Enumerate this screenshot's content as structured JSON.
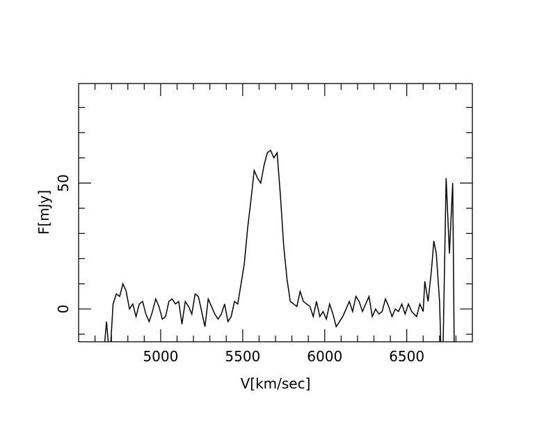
{
  "chart_data": {
    "type": "line",
    "xlabel": "V[km/sec]",
    "ylabel": "F[mJy]",
    "xlim": [
      4500,
      6900
    ],
    "ylim": [
      -13,
      89.5
    ],
    "xticks": [
      5000,
      5500,
      6000,
      6500
    ],
    "yticks": [
      0,
      50
    ],
    "xminorticks": [
      4600,
      4700,
      4800,
      4900,
      5100,
      5200,
      5300,
      5400,
      5600,
      5700,
      5800,
      5900,
      6100,
      6200,
      6300,
      6400,
      6600,
      6700,
      6800
    ],
    "yminorticks": [
      -10,
      10,
      20,
      30,
      40,
      60,
      70,
      80
    ],
    "color": "#000000",
    "x": [
      4650,
      4670,
      4690,
      4710,
      4730,
      4750,
      4770,
      4790,
      4810,
      4830,
      4850,
      4870,
      4890,
      4910,
      4930,
      4950,
      4970,
      4990,
      5010,
      5030,
      5050,
      5070,
      5090,
      5110,
      5130,
      5150,
      5170,
      5190,
      5210,
      5230,
      5250,
      5270,
      5290,
      5310,
      5330,
      5350,
      5370,
      5390,
      5410,
      5430,
      5450,
      5470,
      5490,
      5510,
      5530,
      5550,
      5570,
      5590,
      5610,
      5630,
      5650,
      5670,
      5690,
      5710,
      5730,
      5750,
      5770,
      5790,
      5810,
      5830,
      5850,
      5870,
      5890,
      5910,
      5930,
      5950,
      5970,
      5990,
      6010,
      6030,
      6050,
      6070,
      6090,
      6110,
      6130,
      6150,
      6170,
      6190,
      6210,
      6230,
      6250,
      6270,
      6290,
      6310,
      6330,
      6350,
      6370,
      6390,
      6410,
      6430,
      6450,
      6470,
      6490,
      6510,
      6530,
      6560,
      6580,
      6600,
      6610,
      6630,
      6650,
      6665,
      6680,
      6700,
      6710,
      6720,
      6740,
      6760,
      6780,
      6790
    ],
    "values": [
      -20,
      -5,
      -20,
      2,
      6,
      5,
      10,
      7,
      0,
      2,
      -3,
      2,
      3,
      -2,
      -5,
      -1,
      4,
      1,
      -4,
      -3,
      3,
      4,
      2,
      3,
      -6,
      3,
      1,
      -2,
      6,
      5,
      -1,
      -7,
      4,
      1,
      -2,
      -4,
      -2,
      2,
      -5,
      -3,
      3,
      2,
      10,
      18,
      32,
      43,
      55,
      52,
      50,
      57,
      62,
      63,
      60,
      62,
      45,
      25,
      12,
      3,
      2,
      1,
      7,
      3,
      2,
      1,
      -3,
      3,
      -3,
      -1,
      -4,
      2,
      -2,
      -7,
      -5,
      -3,
      0,
      3,
      -1,
      5,
      3,
      -1,
      2,
      5,
      -3,
      0,
      -2,
      -1,
      4,
      1,
      -3,
      0,
      -1,
      2,
      -2,
      2,
      -1,
      -3,
      2,
      -1,
      11,
      3,
      15,
      27,
      22,
      3,
      -20,
      -20,
      52,
      22,
      50,
      -20
    ]
  }
}
